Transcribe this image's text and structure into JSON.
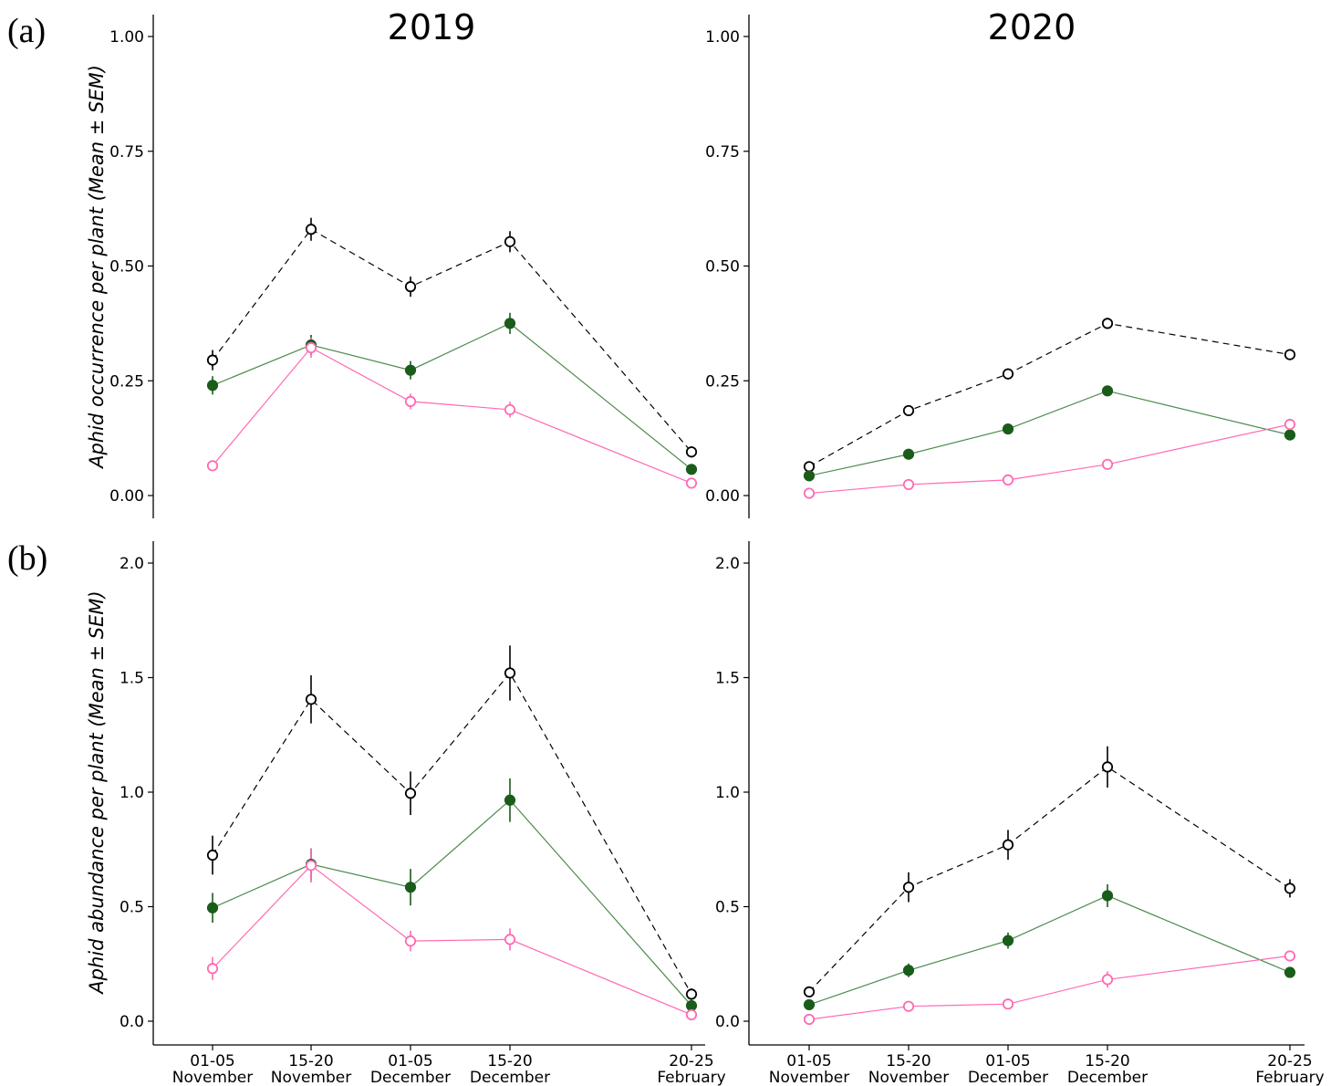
{
  "panel_labels": {
    "a": "(a)",
    "b": "(b)"
  },
  "years": [
    "2019",
    "2020"
  ],
  "ylabels": {
    "occurrence": "Aphid occurrence per plant (Mean ± SEM)",
    "abundance": "Aphid abundance per plant (Mean ± SEM)"
  },
  "colors": {
    "black": "#000000",
    "green": "#1a5c1a",
    "green_line": "#4d8a4d",
    "pink": "#ff69b4"
  },
  "chart_data": [
    {
      "type": "line",
      "panel": "a",
      "year": "2019",
      "ylim": [
        0,
        1.05
      ],
      "yticks": [
        "0.00",
        "0.25",
        "0.50",
        "0.75",
        "1.00"
      ],
      "ytick_values": [
        0,
        0.25,
        0.5,
        0.75,
        1.0
      ],
      "x_tick_top": [
        "01-05",
        "15-20",
        "01-05",
        "15-20",
        "20-25"
      ],
      "x_tick_bottom": [
        "November",
        "November",
        "December",
        "December",
        "February"
      ],
      "series": [
        {
          "style": "black-open-dashed",
          "values": [
            0.295,
            0.58,
            0.455,
            0.553,
            0.095
          ],
          "sem": [
            0.022,
            0.025,
            0.022,
            0.023,
            0.012
          ]
        },
        {
          "style": "green-filled-solid",
          "values": [
            0.24,
            0.328,
            0.273,
            0.375,
            0.057
          ],
          "sem": [
            0.02,
            0.022,
            0.02,
            0.023,
            0.008
          ]
        },
        {
          "style": "pink-open-solid",
          "values": [
            0.065,
            0.322,
            0.205,
            0.187,
            0.027
          ],
          "sem": [
            0.008,
            0.022,
            0.017,
            0.017,
            0.005
          ]
        }
      ]
    },
    {
      "type": "line",
      "panel": "a",
      "year": "2020",
      "ylim": [
        0,
        1.05
      ],
      "yticks": [
        "0.00",
        "0.25",
        "0.50",
        "0.75",
        "1.00"
      ],
      "ytick_values": [
        0,
        0.25,
        0.5,
        0.75,
        1.0
      ],
      "x_tick_top": [
        "01-05",
        "15-20",
        "01-05",
        "15-20",
        "20-25"
      ],
      "x_tick_bottom": [
        "November",
        "November",
        "December",
        "December",
        "February"
      ],
      "series": [
        {
          "style": "black-open-dashed",
          "values": [
            0.063,
            0.185,
            0.265,
            0.375,
            0.307
          ],
          "sem": [
            0.008,
            0.01,
            0.012,
            0.012,
            0.012
          ]
        },
        {
          "style": "green-filled-solid",
          "values": [
            0.043,
            0.09,
            0.145,
            0.228,
            0.132
          ],
          "sem": [
            0.005,
            0.007,
            0.008,
            0.01,
            0.007
          ]
        },
        {
          "style": "pink-open-solid",
          "values": [
            0.005,
            0.024,
            0.034,
            0.068,
            0.155
          ],
          "sem": [
            0.002,
            0.004,
            0.004,
            0.005,
            0.008
          ]
        }
      ]
    },
    {
      "type": "line",
      "panel": "b",
      "year": "2019",
      "ylim": [
        0,
        2.1
      ],
      "yticks": [
        "0.0",
        "0.5",
        "1.0",
        "1.5",
        "2.0"
      ],
      "ytick_values": [
        0,
        0.5,
        1.0,
        1.5,
        2.0
      ],
      "x_tick_top": [
        "01-05",
        "15-20",
        "01-05",
        "15-20",
        "20-25"
      ],
      "x_tick_bottom": [
        "November",
        "November",
        "December",
        "December",
        "February"
      ],
      "series": [
        {
          "style": "black-open-dashed",
          "values": [
            0.725,
            1.405,
            0.995,
            1.52,
            0.118
          ],
          "sem": [
            0.085,
            0.105,
            0.095,
            0.12,
            0.025
          ]
        },
        {
          "style": "green-filled-solid",
          "values": [
            0.495,
            0.685,
            0.585,
            0.965,
            0.068
          ],
          "sem": [
            0.065,
            0.07,
            0.08,
            0.095,
            0.015
          ]
        },
        {
          "style": "pink-open-solid",
          "values": [
            0.23,
            0.68,
            0.35,
            0.357,
            0.028
          ],
          "sem": [
            0.05,
            0.075,
            0.045,
            0.048,
            0.008
          ]
        }
      ]
    },
    {
      "type": "line",
      "panel": "b",
      "year": "2020",
      "ylim": [
        0,
        2.1
      ],
      "yticks": [
        "0.0",
        "0.5",
        "1.0",
        "1.5",
        "2.0"
      ],
      "ytick_values": [
        0,
        0.5,
        1.0,
        1.5,
        2.0
      ],
      "x_tick_top": [
        "01-05",
        "15-20",
        "01-05",
        "15-20",
        "20-25"
      ],
      "x_tick_bottom": [
        "November",
        "November",
        "December",
        "December",
        "February"
      ],
      "series": [
        {
          "style": "black-open-dashed",
          "values": [
            0.128,
            0.585,
            0.77,
            1.11,
            0.58
          ],
          "sem": [
            0.02,
            0.065,
            0.065,
            0.09,
            0.04
          ]
        },
        {
          "style": "green-filled-solid",
          "values": [
            0.072,
            0.222,
            0.352,
            0.548,
            0.213
          ],
          "sem": [
            0.01,
            0.03,
            0.035,
            0.05,
            0.015
          ]
        },
        {
          "style": "pink-open-solid",
          "values": [
            0.008,
            0.065,
            0.075,
            0.182,
            0.285
          ],
          "sem": [
            0.003,
            0.01,
            0.01,
            0.035,
            0.02
          ]
        }
      ]
    }
  ]
}
